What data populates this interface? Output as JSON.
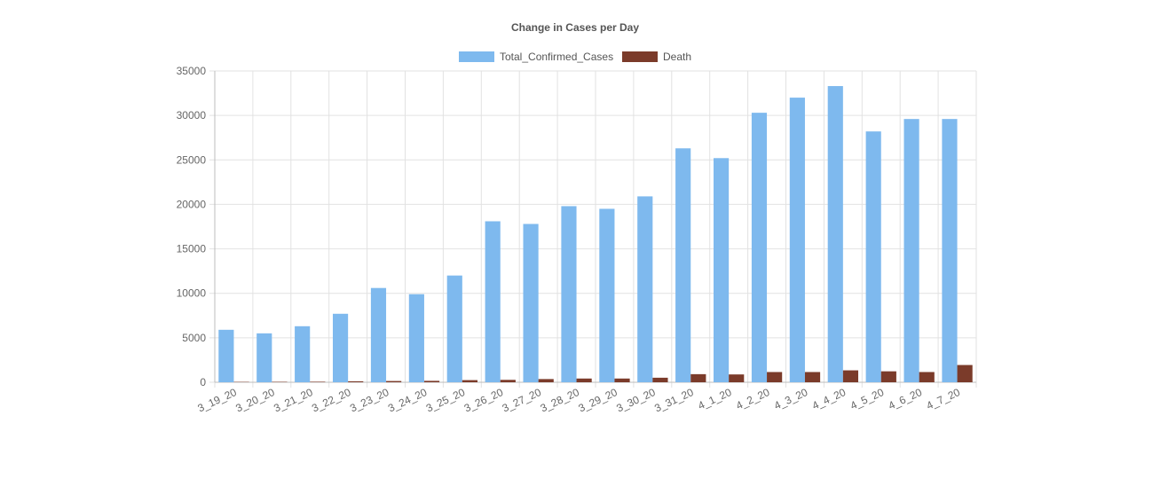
{
  "chart_data": {
    "type": "bar",
    "title": "Change in Cases per Day",
    "xlabel": "",
    "ylabel": "",
    "legend_position": "top",
    "grid": true,
    "ylim": [
      0,
      35000
    ],
    "y_ticks": [
      "0",
      "5000",
      "10000",
      "15000",
      "20000",
      "25000",
      "30000",
      "35000"
    ],
    "categories": [
      "3_19_20",
      "3_20_20",
      "3_21_20",
      "3_22_20",
      "3_23_20",
      "3_24_20",
      "3_25_20",
      "3_26_20",
      "3_27_20",
      "3_28_20",
      "3_29_20",
      "3_30_20",
      "3_31_20",
      "4_1_20",
      "4_2_20",
      "4_3_20",
      "4_4_20",
      "4_5_20",
      "4_6_20",
      "4_7_20"
    ],
    "series": [
      {
        "name": "Total_Confirmed_Cases",
        "color": "#7eb9ee",
        "values": [
          5900,
          5500,
          6300,
          7700,
          10600,
          9900,
          12000,
          18100,
          17800,
          19800,
          19500,
          20900,
          26300,
          25200,
          30300,
          32000,
          33300,
          28200,
          29600,
          29600
        ]
      },
      {
        "name": "Death",
        "color": "#7b3b2a",
        "values": [
          40,
          50,
          60,
          110,
          140,
          160,
          240,
          270,
          360,
          420,
          420,
          510,
          910,
          880,
          1150,
          1150,
          1340,
          1230,
          1150,
          1940
        ]
      }
    ]
  }
}
